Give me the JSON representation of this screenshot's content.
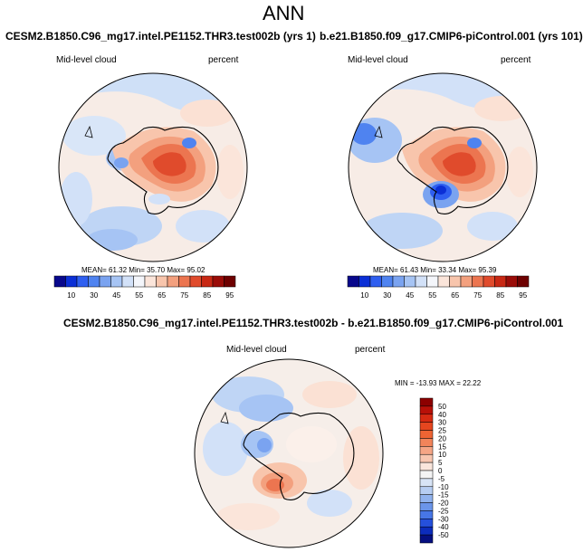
{
  "title": "ANN",
  "left_panel": {
    "case": "CESM2.B1850.C96_mg17.intel.PE1152.THR3.test002b (yrs 1)",
    "variable": "Mid-level cloud",
    "units": "percent",
    "stats": {
      "mean": "61.32",
      "min": "35.70",
      "max": "95.02"
    }
  },
  "right_panel": {
    "case": "b.e21.B1850.f09_g17.CMIP6-piControl.001 (yrs 101)",
    "variable": "Mid-level cloud",
    "units": "percent",
    "stats": {
      "mean": "61.43",
      "min": "33.34",
      "max": "95.39"
    }
  },
  "diff_panel": {
    "case": "CESM2.B1850.C96_mg17.intel.PE1152.THR3.test002b - b.e21.B1850.f09_g17.CMIP6-piControl.001",
    "variable": "Mid-level cloud",
    "units": "percent",
    "minmax_text": "MIN = -13.93  MAX =  22.22"
  },
  "labels": {
    "mean": "MEAN=",
    "min": "Min=",
    "max": "Max="
  },
  "colorbar_abs": {
    "labels": [
      "10",
      "30",
      "45",
      "55",
      "65",
      "75",
      "85",
      "95"
    ],
    "colors": [
      "#08088c",
      "#0b2fd6",
      "#2f5ff0",
      "#4f83f0",
      "#7aa3f0",
      "#a6c4f4",
      "#d2e1f8",
      "#f4f6fb",
      "#fbe5da",
      "#f8c5ac",
      "#f3a07e",
      "#ec7550",
      "#e04b2c",
      "#c82814",
      "#9a0c08",
      "#6e0000"
    ]
  },
  "colorbar_diff": {
    "labels": [
      "50",
      "40",
      "30",
      "25",
      "20",
      "15",
      "10",
      "5",
      "0",
      "-5",
      "-10",
      "-15",
      "-20",
      "-25",
      "-30",
      "-40",
      "-50"
    ],
    "colors": [
      "#8c0000",
      "#b81008",
      "#d62a12",
      "#e6461f",
      "#ee6433",
      "#f2845a",
      "#f5a585",
      "#f7c6b0",
      "#fae6dc",
      "#f4f4f4",
      "#d8e4f6",
      "#b6cdf2",
      "#90b2ee",
      "#6b95ea",
      "#4776e6",
      "#2550dc",
      "#0c2cbc",
      "#050f80"
    ]
  },
  "icons": {
    "coastline": "coastline-icon"
  }
}
